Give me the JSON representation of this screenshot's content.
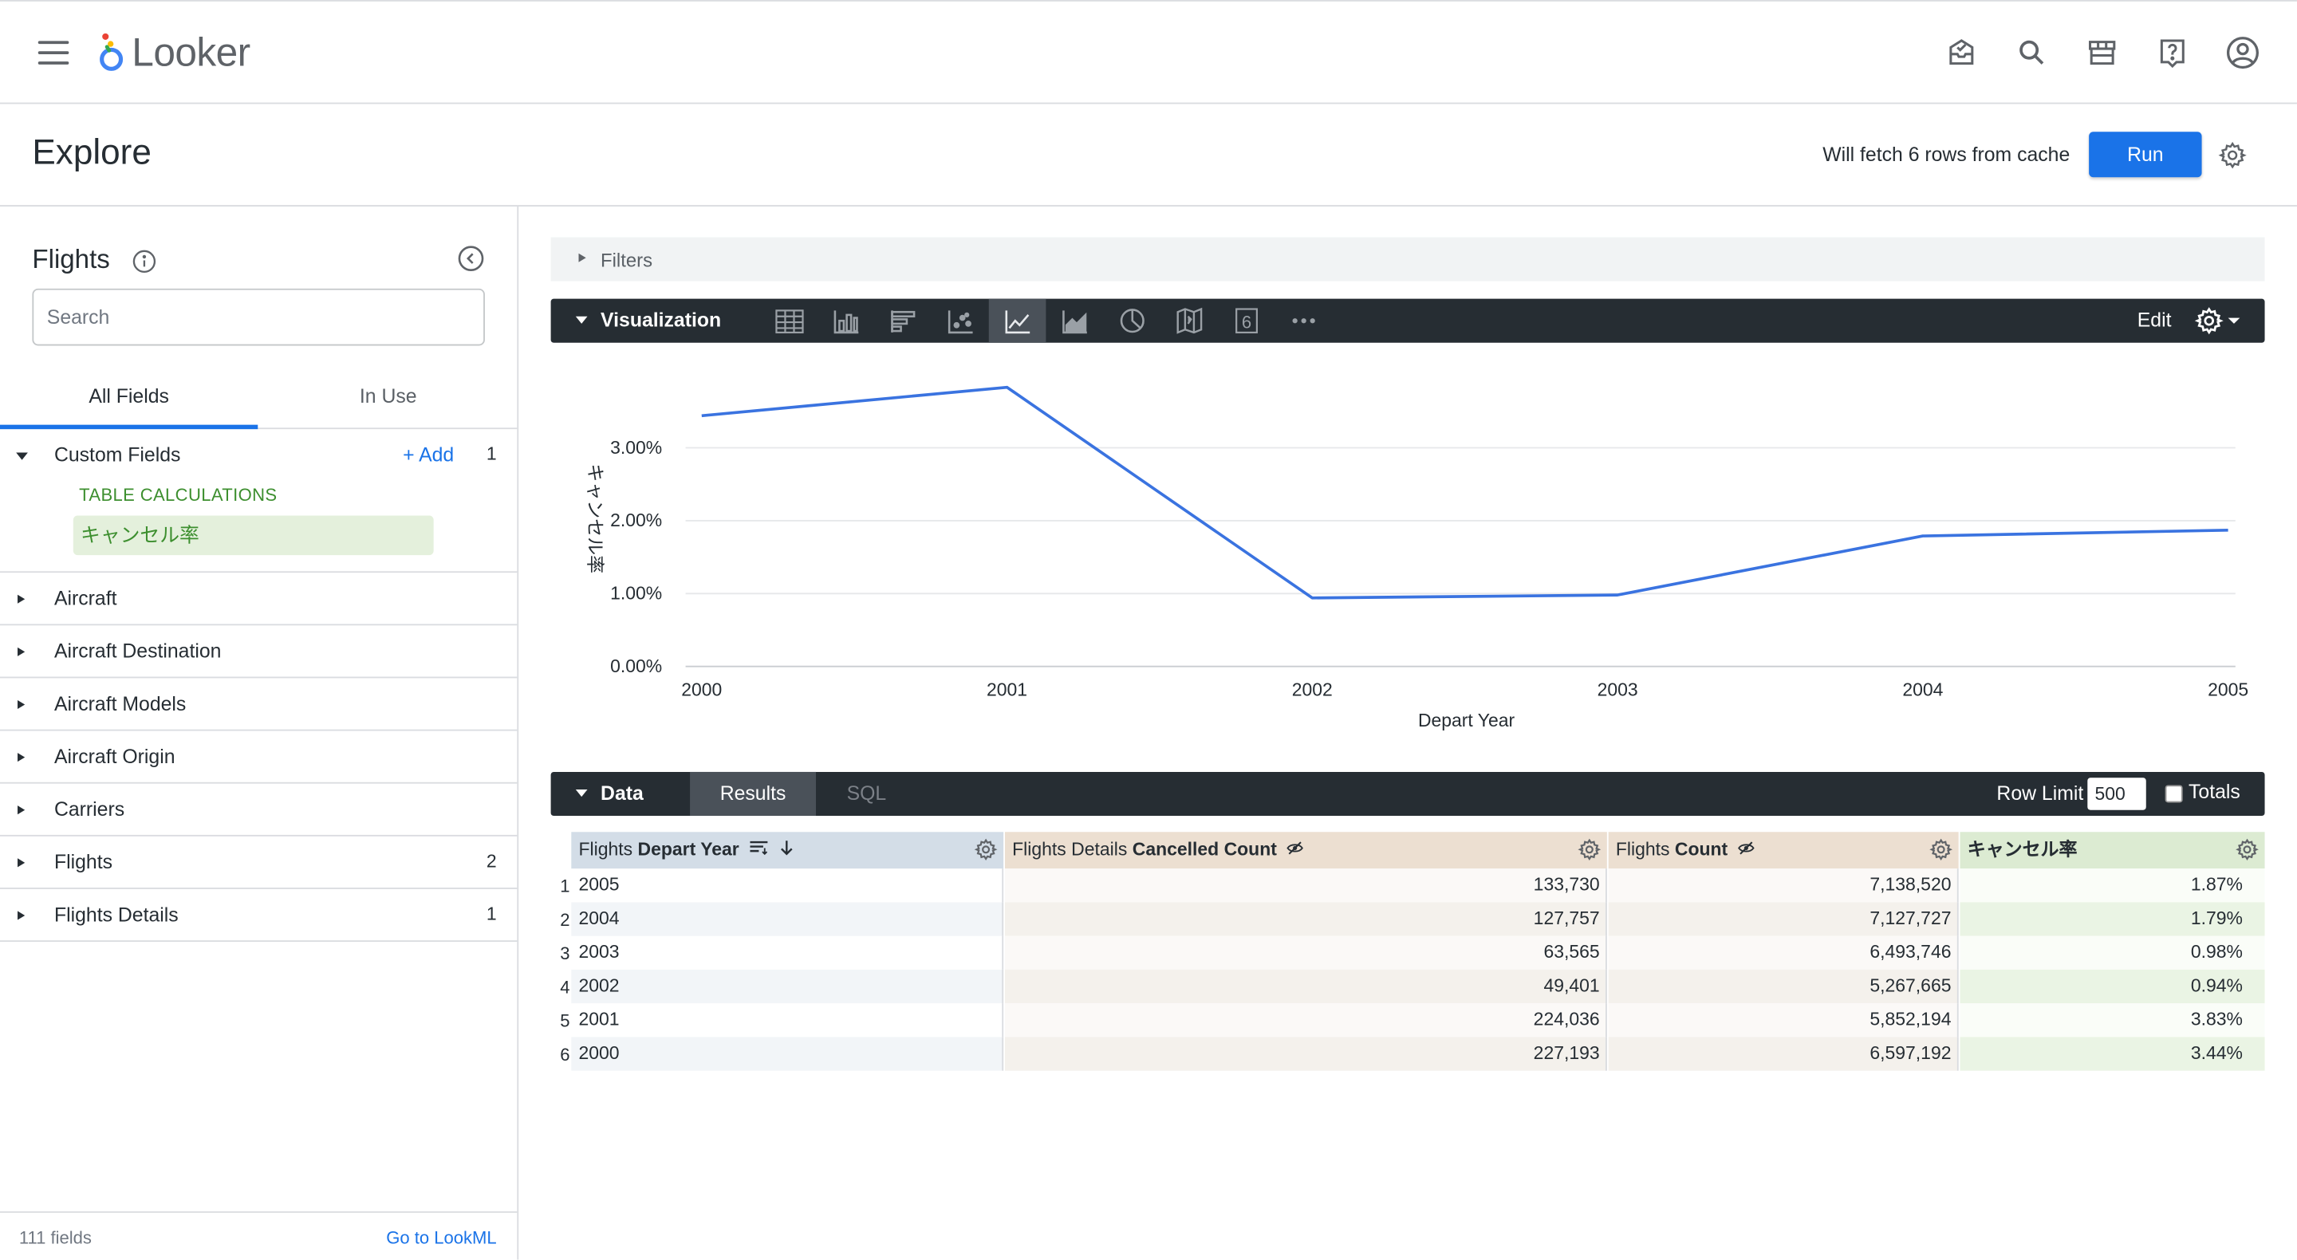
{
  "app": {
    "logo_text": "Looker"
  },
  "explore": {
    "title": "Explore",
    "fetch_status": "Will fetch 6 rows from cache",
    "run_label": "Run"
  },
  "sidebar": {
    "title": "Flights",
    "search_placeholder": "Search",
    "tabs": [
      "All Fields",
      "In Use"
    ],
    "custom_fields": {
      "label": "Custom Fields",
      "add_label": "+ Add",
      "count": "1",
      "section_label": "TABLE CALCULATIONS",
      "item": "キャンセル率"
    },
    "views": [
      {
        "label": "Aircraft",
        "count": ""
      },
      {
        "label": "Aircraft Destination",
        "count": ""
      },
      {
        "label": "Aircraft Models",
        "count": ""
      },
      {
        "label": "Aircraft Origin",
        "count": ""
      },
      {
        "label": "Carriers",
        "count": ""
      },
      {
        "label": "Flights",
        "count": "2"
      },
      {
        "label": "Flights Details",
        "count": "1"
      }
    ],
    "field_count": "111 fields",
    "lookml_link": "Go to LookML"
  },
  "filters": {
    "label": "Filters"
  },
  "visualization": {
    "label": "Visualization",
    "edit_label": "Edit",
    "types": [
      "table-icon",
      "column-chart-icon",
      "bar-chart-icon",
      "scatter-icon",
      "line-chart-icon",
      "area-chart-icon",
      "pie-chart-icon",
      "map-icon",
      "single-value-icon",
      "more-icon"
    ],
    "active_type": "line-chart-icon"
  },
  "chart_data": {
    "type": "line",
    "x": [
      "2000",
      "2001",
      "2002",
      "2003",
      "2004",
      "2005"
    ],
    "series": [
      {
        "values": [
          3.44,
          3.83,
          0.94,
          0.98,
          1.79,
          1.87
        ],
        "color": "#3a73e0"
      }
    ],
    "xlabel": "Depart Year",
    "ylabel": "キャンセル率",
    "yticks": [
      "0.00%",
      "1.00%",
      "2.00%",
      "3.00%"
    ],
    "ylim": [
      0,
      4.2
    ],
    "grid": true
  },
  "data_panel": {
    "label": "Data",
    "tabs": {
      "results": "Results",
      "sql": "SQL"
    },
    "row_limit_label": "Row Limit",
    "row_limit_value": "500",
    "totals_label": "Totals"
  },
  "table": {
    "columns": [
      {
        "prefix": "Flights ",
        "name": "Depart Year"
      },
      {
        "prefix": "Flights Details ",
        "name": "Cancelled Count"
      },
      {
        "prefix": "Flights ",
        "name": "Count"
      },
      {
        "prefix": "",
        "name": "キャンセル率"
      }
    ],
    "rows": [
      {
        "n": "1",
        "year": "2005",
        "cancelled": "133,730",
        "count": "7,138,520",
        "rate": "1.87%"
      },
      {
        "n": "2",
        "year": "2004",
        "cancelled": "127,757",
        "count": "7,127,727",
        "rate": "1.79%"
      },
      {
        "n": "3",
        "year": "2003",
        "cancelled": "63,565",
        "count": "6,493,746",
        "rate": "0.98%"
      },
      {
        "n": "4",
        "year": "2002",
        "cancelled": "49,401",
        "count": "5,267,665",
        "rate": "0.94%"
      },
      {
        "n": "5",
        "year": "2001",
        "cancelled": "224,036",
        "count": "5,852,194",
        "rate": "3.83%"
      },
      {
        "n": "6",
        "year": "2000",
        "cancelled": "227,193",
        "count": "6,597,192",
        "rate": "3.44%"
      }
    ]
  },
  "colors": {
    "accent": "#1a73e8",
    "bar_dark": "#262d33",
    "dimension_header": "#d3dde7",
    "measure_header": "#ecdfd1",
    "calc_header": "#dcebd2",
    "calc_text": "#3d8f2f"
  }
}
